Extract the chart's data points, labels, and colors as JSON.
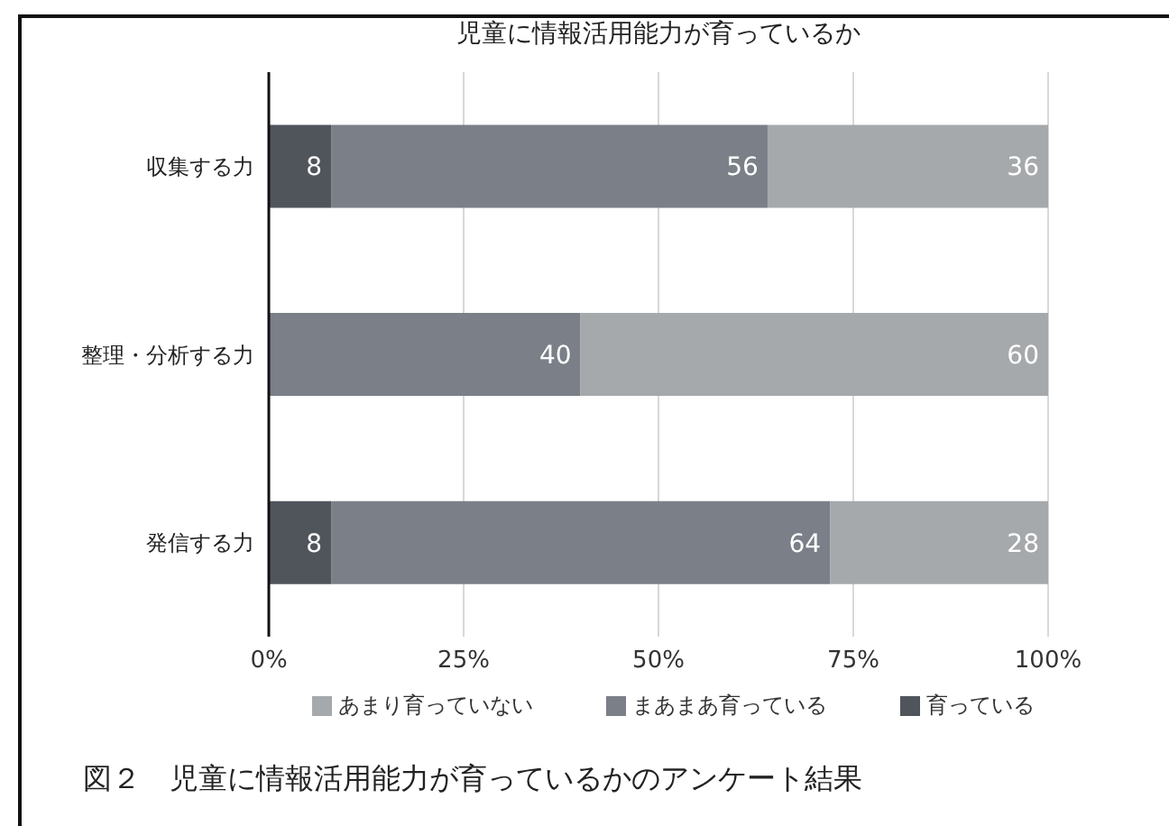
{
  "chart_data": {
    "type": "bar",
    "orientation": "horizontal",
    "stacked": true,
    "title": "児童に情報活用能力が育っているか",
    "categories": [
      "収集する力",
      "整理・分析する力",
      "発信する力"
    ],
    "series": [
      {
        "name": "育っている",
        "color": "#50555c",
        "values": [
          8,
          null,
          8
        ]
      },
      {
        "name": "まあまあ育っている",
        "color": "#7a7f88",
        "values": [
          56,
          40,
          64
        ]
      },
      {
        "name": "あまり育っていない",
        "color": "#a6a9ac",
        "values": [
          36,
          60,
          28
        ]
      }
    ],
    "xlim": [
      0,
      100
    ],
    "xticks": [
      {
        "value": 0,
        "label": "0%"
      },
      {
        "value": 25,
        "label": "25%"
      },
      {
        "value": 50,
        "label": "50%"
      },
      {
        "value": 75,
        "label": "75%"
      },
      {
        "value": 100,
        "label": "100%"
      }
    ],
    "grid": "x",
    "legend": "bottom",
    "data_labels": true,
    "annotations": [
      "図２　児童に情報活用能力が育っているかのアンケート結果"
    ]
  }
}
